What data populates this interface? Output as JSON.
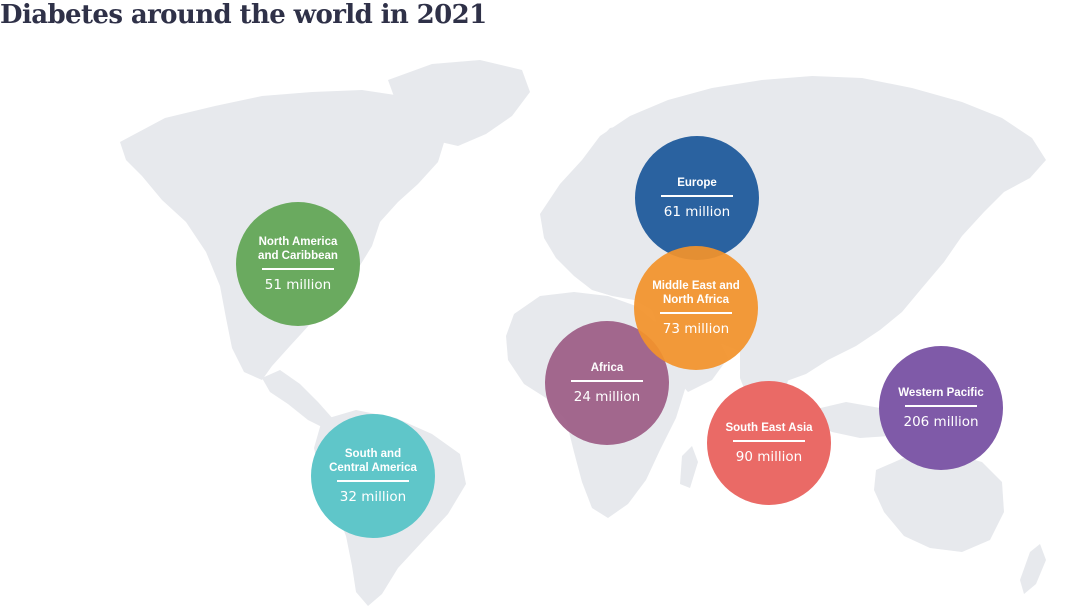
{
  "title": "Diabetes around the world in 2021",
  "regions": [
    {
      "name": "North America\nand Caribbean",
      "value": "51 million",
      "color": "#6aaa5f"
    },
    {
      "name": "South and\nCentral America",
      "value": "32 million",
      "color": "#5fc6c9"
    },
    {
      "name": "Europe",
      "value": "61 million",
      "color": "#2a62a0"
    },
    {
      "name": "Middle East and\nNorth Africa",
      "value": "73 million",
      "color": "#f2922b"
    },
    {
      "name": "Africa",
      "value": "24 million",
      "color": "#a0628a"
    },
    {
      "name": "South East Asia",
      "value": "90 million",
      "color": "#ea6a66"
    },
    {
      "name": "Western Pacific",
      "value": "206 million",
      "color": "#7f5aa8"
    }
  ]
}
